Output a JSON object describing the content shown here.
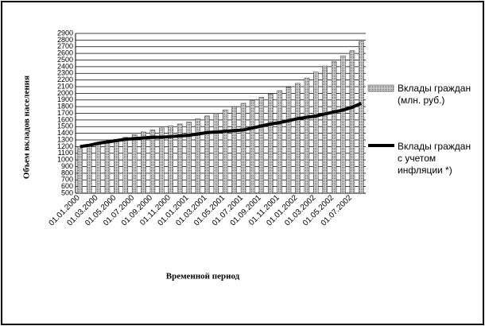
{
  "chart_data": {
    "type": "bar_line",
    "y_label": "Объем вкладов населения",
    "x_label": "Временной период",
    "categories": [
      "01.01.2000",
      null,
      "01.03.2000",
      null,
      "01.05.2000",
      null,
      "01.07.2000",
      null,
      "01.09.2000",
      null,
      "01.11.2000",
      null,
      "01.01.2001",
      null,
      "01.03.2001",
      null,
      "01.05.2001",
      null,
      "01.07.2001",
      null,
      "01.09.2001",
      null,
      "01.11.2001",
      null,
      "01.01.2002",
      null,
      "01.03.2002",
      null,
      "01.05.2002",
      null,
      "01.07.2002",
      null
    ],
    "series": [
      {
        "name": "Вклады граждан (млн. руб.)",
        "kind": "bar",
        "color": "#9a9a9a",
        "values": [
          1200,
          1220,
          1250,
          1280,
          1310,
          1340,
          1380,
          1420,
          1450,
          1480,
          1510,
          1540,
          1570,
          1620,
          1660,
          1700,
          1750,
          1800,
          1850,
          1890,
          1940,
          1990,
          2040,
          2090,
          2150,
          2230,
          2320,
          2410,
          2480,
          2560,
          2640,
          2780
        ]
      },
      {
        "name": "Вклады граждан с учетом инфляции *)",
        "kind": "line",
        "color": "#000000",
        "values": [
          1200,
          1220,
          1250,
          1270,
          1290,
          1310,
          1320,
          1330,
          1340,
          1340,
          1350,
          1360,
          1370,
          1390,
          1410,
          1420,
          1430,
          1440,
          1450,
          1480,
          1510,
          1540,
          1560,
          1590,
          1620,
          1640,
          1660,
          1690,
          1720,
          1750,
          1790,
          1850
        ]
      }
    ],
    "ylim": [
      500,
      2900
    ],
    "yticks": [
      500,
      600,
      700,
      800,
      900,
      1000,
      1100,
      1200,
      1300,
      1400,
      1500,
      1600,
      1700,
      1800,
      1900,
      2000,
      2100,
      2200,
      2300,
      2400,
      2500,
      2600,
      2700,
      2800,
      2900
    ],
    "grid": true
  }
}
